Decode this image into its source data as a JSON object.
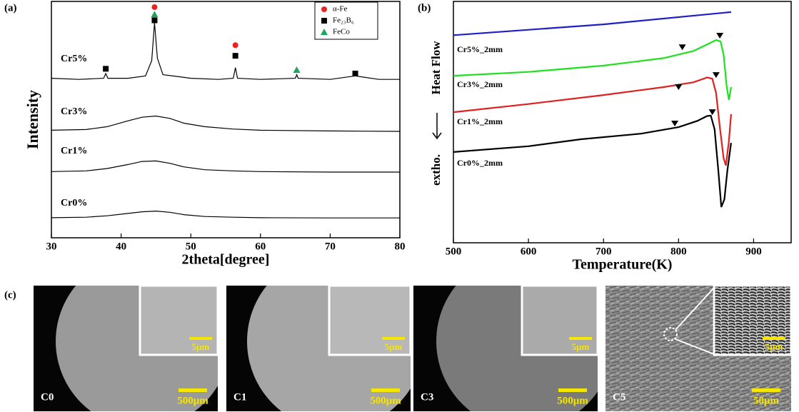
{
  "chart_data": [
    {
      "type": "line",
      "panel": "(a)",
      "x_label": "2theta[degree]",
      "y_label": "Intensity",
      "xlim": [
        30,
        80
      ],
      "xticks": [
        30,
        40,
        50,
        60,
        70,
        80
      ],
      "ylim": [
        0,
        100
      ],
      "series": [
        {
          "name": "Cr5%",
          "color": "#000000",
          "x": [
            30,
            34,
            37.5,
            37.8,
            38.1,
            41,
            43.5,
            44.4,
            44.8,
            45.2,
            46,
            50,
            54,
            56.1,
            56.4,
            56.7,
            60,
            65,
            65.2,
            65.4,
            70,
            73.6,
            77,
            80
          ],
          "values": [
            67.5,
            67,
            67.5,
            69.5,
            67.5,
            67.5,
            68.5,
            75,
            91,
            76,
            69,
            67.5,
            67,
            67.5,
            72,
            67.5,
            67,
            67.5,
            69,
            67.5,
            67,
            68.5,
            67,
            67
          ]
        },
        {
          "name": "Cr3%",
          "color": "#000000",
          "x": [
            30,
            35,
            38,
            41,
            43,
            45,
            47,
            49,
            52,
            56,
            60,
            70,
            80
          ],
          "values": [
            45.5,
            45.8,
            47,
            49.5,
            51,
            51.5,
            50.5,
            48.5,
            47,
            46,
            45.5,
            45.2,
            45
          ]
        },
        {
          "name": "Cr1%",
          "color": "#000000",
          "x": [
            30,
            35,
            38,
            41,
            43,
            45,
            47,
            49,
            52,
            56,
            60,
            70,
            80
          ],
          "values": [
            28,
            28.3,
            29.3,
            31,
            32.3,
            32.5,
            31.5,
            30,
            28.8,
            28.3,
            28,
            27.8,
            27.8
          ]
        },
        {
          "name": "Cr0%",
          "color": "#000000",
          "x": [
            30,
            35,
            38,
            41,
            43,
            45,
            47,
            49,
            52,
            56,
            60,
            70,
            80
          ],
          "values": [
            8.5,
            8.7,
            9.3,
            10.3,
            11,
            11.3,
            10.8,
            9.8,
            9,
            8.7,
            8.5,
            8.4,
            8.4
          ]
        }
      ],
      "markers": [
        {
          "name": "α-Fe",
          "color": "#e8261f",
          "shape": "circle",
          "x": [
            44.8,
            56.4
          ],
          "values": [
            97.6,
            81.5
          ]
        },
        {
          "name": "Fe₂₃B₆",
          "color": "#000000",
          "shape": "square",
          "x": [
            37.8,
            44.8,
            56.4,
            73.6
          ],
          "values": [
            71.5,
            92,
            77,
            69.5
          ]
        },
        {
          "name": "FeCo",
          "color": "#1fa65a",
          "shape": "triangle",
          "x": [
            44.8,
            65.2
          ],
          "values": [
            94.5,
            71
          ]
        }
      ]
    },
    {
      "type": "line",
      "panel": "(b)",
      "x_label": "Temperature(K)",
      "y_label_lower": "extho.",
      "y_label_upper": "Heat Flow",
      "xlim": [
        500,
        950
      ],
      "xticks": [
        500,
        600,
        700,
        800,
        900
      ],
      "ylim": [
        0,
        100
      ],
      "series": [
        {
          "name": "Cr5%_2mm",
          "color": "#1f1fc8",
          "x": [
            500,
            700,
            870
          ],
          "values": [
            86,
            90.5,
            95.6
          ]
        },
        {
          "name": "Cr3%_2mm",
          "color": "#1fe01f",
          "x": [
            500,
            600,
            700,
            780,
            820,
            840,
            850,
            856,
            860,
            864,
            867,
            870
          ],
          "values": [
            69.2,
            70.8,
            73.4,
            76.5,
            79.5,
            82.5,
            84,
            83.4,
            78,
            65,
            59.2,
            64.5
          ],
          "peak_x": [
            805,
            855
          ],
          "peak_values": [
            81,
            85.8
          ]
        },
        {
          "name": "Cr1%_2mm",
          "color": "#e01f1f",
          "x": [
            500,
            600,
            700,
            780,
            820,
            838,
            845,
            850,
            855,
            860,
            863,
            867,
            870
          ],
          "values": [
            54.1,
            57.5,
            61.2,
            64.5,
            66.5,
            68.5,
            68,
            62,
            48,
            35,
            32,
            42,
            53.3
          ],
          "peak_x": [
            800,
            850
          ],
          "peak_values": [
            64.5,
            69.5
          ]
        },
        {
          "name": "Cr0%_2mm",
          "color": "#000000",
          "x": [
            500,
            600,
            670,
            750,
            800,
            825,
            838,
            843,
            848,
            853,
            857,
            861,
            865,
            870
          ],
          "values": [
            37.6,
            40,
            42.9,
            45.2,
            47.9,
            50.5,
            52.5,
            52.7,
            47,
            30,
            14.8,
            18,
            30,
            41.4
          ],
          "peak_x": [
            795,
            845
          ],
          "peak_values": [
            49.4,
            54.1
          ]
        }
      ]
    }
  ],
  "panel_c": {
    "panel": "(c)",
    "images": [
      {
        "label": "C0",
        "scale_main": "500μm",
        "scale_inset": "5μm"
      },
      {
        "label": "C1",
        "scale_main": "500μm",
        "scale_inset": "5μm"
      },
      {
        "label": "C3",
        "scale_main": "500μm",
        "scale_inset": "5μm"
      },
      {
        "label": "C5",
        "scale_main": "50μm",
        "scale_inset": "5μm"
      }
    ]
  }
}
